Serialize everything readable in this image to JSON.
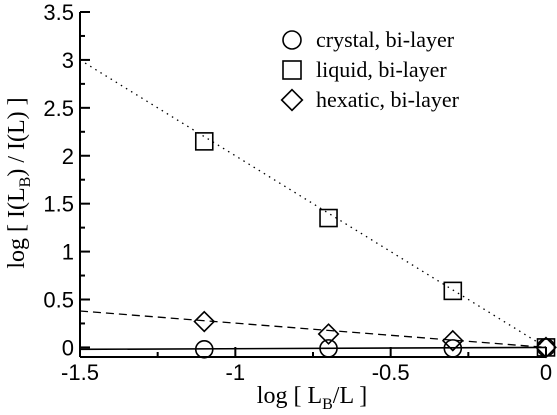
{
  "chart_data": {
    "type": "scatter",
    "x_ticks": [
      "-1.5",
      "-1",
      "-0.5",
      "0"
    ],
    "y_ticks": [
      "0",
      "0.5",
      "1",
      "1.5",
      "2",
      "2.5",
      "3",
      "3.5"
    ],
    "x_tick_values": [
      -1.5,
      -1.0,
      -0.5,
      0.0
    ],
    "y_tick_values": [
      0.0,
      0.5,
      1.0,
      1.5,
      2.0,
      2.5,
      3.0,
      3.5
    ],
    "xlim": [
      -1.5,
      0
    ],
    "ylim": [
      -0.1,
      3.5
    ],
    "xlabel": {
      "prefix": "log [ L",
      "sub": "B",
      "suffix": "/L ]"
    },
    "ylabel": {
      "prefix": "log [ I(L",
      "sub": "B",
      "suffix": ") / I(L) ]"
    },
    "legend_position": "top-right",
    "series": [
      {
        "name": "crystal, bi-layer",
        "marker": "circle",
        "fit_line": "solid",
        "x": [
          -1.1,
          -0.7,
          -0.3,
          0.0
        ],
        "y": [
          -0.02,
          -0.01,
          -0.01,
          0.0
        ],
        "fit": {
          "x": [
            -1.5,
            0.0
          ],
          "y": [
            -0.02,
            0.0
          ]
        }
      },
      {
        "name": "liquid, bi-layer",
        "marker": "square",
        "fit_line": "dotted",
        "x": [
          -1.1,
          -0.7,
          -0.3,
          0.0
        ],
        "y": [
          2.15,
          1.35,
          0.59,
          0.0
        ],
        "fit": {
          "x": [
            -1.5,
            0.0
          ],
          "y": [
            3.0,
            0.0
          ]
        }
      },
      {
        "name": "hexatic, bi-layer",
        "marker": "diamond",
        "fit_line": "dashed",
        "x": [
          -1.1,
          -0.7,
          -0.3,
          0.0
        ],
        "y": [
          0.27,
          0.14,
          0.07,
          0.0
        ],
        "fit": {
          "x": [
            -1.5,
            0.0
          ],
          "y": [
            0.38,
            0.0
          ]
        }
      }
    ]
  }
}
